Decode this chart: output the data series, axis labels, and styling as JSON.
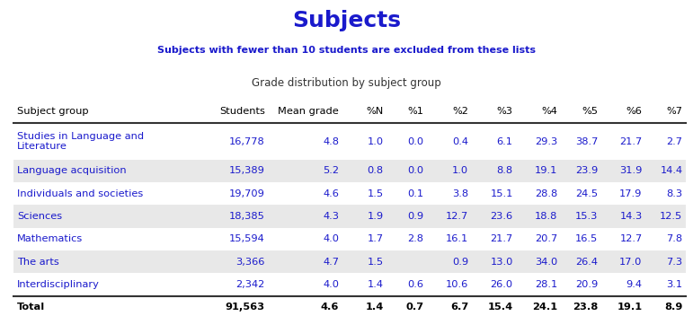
{
  "title": "Subjects",
  "subtitle": "Subjects with fewer than 10 students are excluded from these lists",
  "table_header": "Grade distribution by subject group",
  "title_color": "#1a1acc",
  "subtitle_color": "#1a1acc",
  "col_headers": [
    "Subject group",
    "Students",
    "Mean grade",
    "%N",
    "%1",
    "%2",
    "%3",
    "%4",
    "%5",
    "%6",
    "%7"
  ],
  "rows": [
    [
      "Studies in Language and\nLiterature",
      "16,778",
      "4.8",
      "1.0",
      "0.0",
      "0.4",
      "6.1",
      "29.3",
      "38.7",
      "21.7",
      "2.7"
    ],
    [
      "Language acquisition",
      "15,389",
      "5.2",
      "0.8",
      "0.0",
      "1.0",
      "8.8",
      "19.1",
      "23.9",
      "31.9",
      "14.4"
    ],
    [
      "Individuals and societies",
      "19,709",
      "4.6",
      "1.5",
      "0.1",
      "3.8",
      "15.1",
      "28.8",
      "24.5",
      "17.9",
      "8.3"
    ],
    [
      "Sciences",
      "18,385",
      "4.3",
      "1.9",
      "0.9",
      "12.7",
      "23.6",
      "18.8",
      "15.3",
      "14.3",
      "12.5"
    ],
    [
      "Mathematics",
      "15,594",
      "4.0",
      "1.7",
      "2.8",
      "16.1",
      "21.7",
      "20.7",
      "16.5",
      "12.7",
      "7.8"
    ],
    [
      "The arts",
      "3,366",
      "4.7",
      "1.5",
      "",
      "0.9",
      "13.0",
      "34.0",
      "26.4",
      "17.0",
      "7.3"
    ],
    [
      "Interdisciplinary",
      "2,342",
      "4.0",
      "1.4",
      "0.6",
      "10.6",
      "26.0",
      "28.1",
      "20.9",
      "9.4",
      "3.1"
    ]
  ],
  "total_row": [
    "Total",
    "91,563",
    "4.6",
    "1.4",
    "0.7",
    "6.7",
    "15.4",
    "24.1",
    "23.8",
    "19.1",
    "8.9"
  ],
  "bg_colors": [
    "#ffffff",
    "#e8e8e8"
  ],
  "data_text_color": "#1a1acc",
  "header_text_color": "#000000",
  "total_text_color": "#000000",
  "figsize": [
    7.71,
    3.52
  ],
  "dpi": 100
}
